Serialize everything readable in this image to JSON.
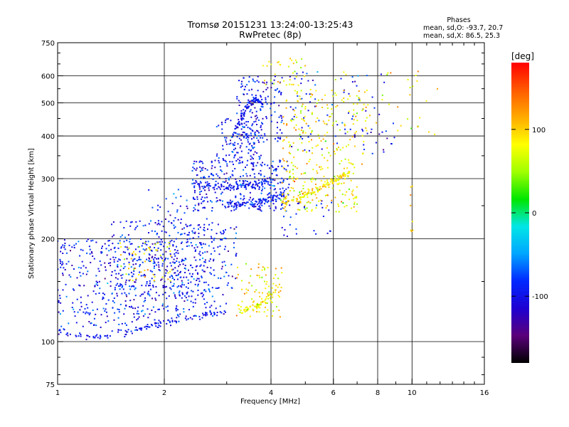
{
  "chart_data": {
    "type": "scatter",
    "title": "Tromsø 20151231 13:24:00-13:25:43",
    "subtitle": "RwPretec (8p)",
    "xlabel": "Frequency [MHz]",
    "ylabel": "Stationary phase Virtual Height [km]",
    "x_scale": "log2",
    "y_scale": "log",
    "xlim": [
      1,
      16
    ],
    "ylim": [
      75,
      750
    ],
    "x_ticks": [
      {
        "value": 1,
        "label": "1"
      },
      {
        "value": 2,
        "label": "2"
      },
      {
        "value": 4,
        "label": "4"
      },
      {
        "value": 6,
        "label": "6"
      },
      {
        "value": 8,
        "label": "8"
      },
      {
        "value": 10,
        "label": "10"
      },
      {
        "value": 16,
        "label": "16"
      }
    ],
    "y_ticks": [
      {
        "value": 75,
        "label": "75"
      },
      {
        "value": 100,
        "label": "100"
      },
      {
        "value": 200,
        "label": "200"
      },
      {
        "value": 300,
        "label": "300"
      },
      {
        "value": 400,
        "label": "400"
      },
      {
        "value": 500,
        "label": "500"
      },
      {
        "value": 600,
        "label": "600"
      },
      {
        "value": 750,
        "label": "750"
      }
    ],
    "grid": true,
    "stats": {
      "heading": "Phases",
      "line_o": "mean, sd,O: -93.7, 20.7",
      "line_x": "mean, sd,X:  86.5, 25.3"
    },
    "colorbar": {
      "label": "[deg]",
      "range": [
        -180,
        180
      ],
      "ticks": [
        {
          "value": 100,
          "label": "100"
        },
        {
          "value": 0,
          "label": "0"
        },
        {
          "value": -100,
          "label": "-100"
        }
      ],
      "colors": [
        "#000000",
        "#5a007a",
        "#1e00d2",
        "#0028ff",
        "#00a6ff",
        "#00e6e6",
        "#00e600",
        "#a0ff00",
        "#ffff00",
        "#ffaa00",
        "#ff5a00",
        "#ff0000"
      ]
    },
    "series": [
      {
        "mode": "O",
        "mean_phase": -93.7,
        "sd_phase": 20.7,
        "traces": [
          {
            "x": [
              1.0,
              1.15,
              1.3,
              1.5,
              1.7,
              1.9,
              2.1,
              2.4,
              2.7,
              3.0
            ],
            "y": [
              108,
              104,
              103,
              106,
              109,
              112,
              115,
              118,
              121,
              123
            ]
          },
          {
            "x": [
              3.0,
              3.2,
              3.4,
              3.6,
              3.8,
              4.0,
              4.2,
              4.4
            ],
            "y": [
              255,
              252,
              250,
              252,
              258,
              262,
              268,
              272
            ]
          },
          {
            "x": [
              2.4,
              2.6,
              2.8,
              3.0,
              3.2,
              3.4,
              3.6,
              3.8,
              4.0
            ],
            "y": [
              290,
              288,
              285,
              284,
              286,
              288,
              290,
              292,
              295
            ]
          },
          {
            "x": [
              3.2,
              3.3,
              3.4,
              3.5,
              3.6,
              3.7,
              3.8
            ],
            "y": [
              420,
              455,
              480,
              500,
              510,
              505,
              495
            ]
          }
        ],
        "clouds": [
          {
            "x": [
              1.0,
              2.2
            ],
            "y": [
              110,
              200
            ],
            "n": 380
          },
          {
            "x": [
              1.4,
              3.0
            ],
            "y": [
              120,
              230
            ],
            "n": 260
          },
          {
            "x": [
              1.8,
              2.6
            ],
            "y": [
              130,
              280
            ],
            "n": 120
          },
          {
            "x": [
              2.2,
              3.2
            ],
            "y": [
              140,
              220
            ],
            "n": 110
          },
          {
            "x": [
              2.4,
              4.5
            ],
            "y": [
              240,
              340
            ],
            "n": 300
          },
          {
            "x": [
              2.8,
              3.8
            ],
            "y": [
              330,
              450
            ],
            "n": 130
          },
          {
            "x": [
              3.2,
              4.3
            ],
            "y": [
              380,
              600
            ],
            "n": 150
          },
          {
            "x": [
              4.3,
              6.0
            ],
            "y": [
              200,
              260
            ],
            "n": 30
          },
          {
            "x": [
              4.5,
              9.0
            ],
            "y": [
              350,
              620
            ],
            "n": 90
          }
        ]
      },
      {
        "mode": "X",
        "mean_phase": 86.5,
        "sd_phase": 25.3,
        "traces": [
          {
            "x": [
              4.3,
              4.6,
              4.9,
              5.2,
              5.5,
              5.8,
              6.1,
              6.4,
              6.7
            ],
            "y": [
              258,
              262,
              268,
              275,
              282,
              290,
              298,
              308,
              315
            ]
          },
          {
            "x": [
              3.3,
              3.5,
              3.7,
              3.9,
              4.1
            ],
            "y": [
              122,
              125,
              128,
              132,
              140
            ]
          }
        ],
        "clouds": [
          {
            "x": [
              1.5,
              2.1
            ],
            "y": [
              150,
              195
            ],
            "n": 55
          },
          {
            "x": [
              3.2,
              4.3
            ],
            "y": [
              118,
              170
            ],
            "n": 90
          },
          {
            "x": [
              4.3,
              7.0
            ],
            "y": [
              240,
              330
            ],
            "n": 150
          },
          {
            "x": [
              4.3,
              7.5
            ],
            "y": [
              330,
              550
            ],
            "n": 170
          },
          {
            "x": [
              3.8,
              5.0
            ],
            "y": [
              560,
              680
            ],
            "n": 35
          },
          {
            "x": [
              6.0,
              12.0
            ],
            "y": [
              400,
              620
            ],
            "n": 45
          },
          {
            "x": [
              9.8,
              10.2
            ],
            "y": [
              185,
              300
            ],
            "n": 8
          }
        ]
      }
    ]
  }
}
